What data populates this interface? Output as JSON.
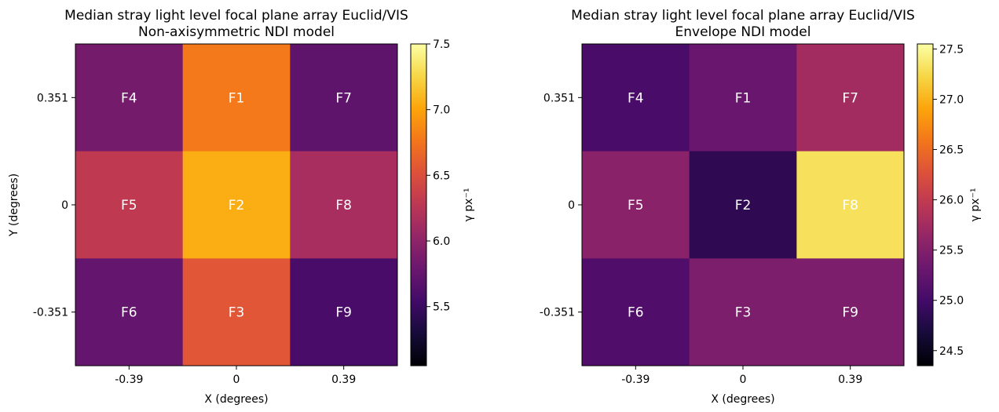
{
  "chart_data": [
    {
      "type": "heatmap",
      "title": "Median stray light level focal plane array Euclid/VIS",
      "subtitle": "Non-axisymmetric NDI model",
      "xlabel": "X (degrees)",
      "ylabel": "Y (degrees)",
      "x_ticks": [
        "-0.39",
        "0",
        "0.39"
      ],
      "y_ticks": [
        "0.351",
        "0",
        "-0.351"
      ],
      "colormap": "inferno",
      "colorbar": {
        "label": "γ px⁻¹",
        "range": [
          5.05,
          7.5
        ],
        "ticks": [
          "5.5",
          "6.0",
          "6.5",
          "7.0",
          "7.5"
        ],
        "tick_values": [
          5.5,
          6.0,
          6.5,
          7.0,
          7.5
        ]
      },
      "cells": [
        [
          {
            "label": "F4",
            "value": 5.85
          },
          {
            "label": "F1",
            "value": 6.78
          },
          {
            "label": "F7",
            "value": 5.72
          }
        ],
        [
          {
            "label": "F5",
            "value": 6.3
          },
          {
            "label": "F2",
            "value": 7.05
          },
          {
            "label": "F8",
            "value": 6.15
          }
        ],
        [
          {
            "label": "F6",
            "value": 5.75
          },
          {
            "label": "F3",
            "value": 6.55
          },
          {
            "label": "F9",
            "value": 5.58
          }
        ]
      ]
    },
    {
      "type": "heatmap",
      "title": "Median stray light level focal plane array Euclid/VIS",
      "subtitle": "Envelope NDI model",
      "xlabel": "X (degrees)",
      "ylabel": "",
      "x_ticks": [
        "-0.39",
        "0",
        "0.39"
      ],
      "y_ticks": [
        "0.351",
        "0",
        "-0.351"
      ],
      "colormap": "inferno",
      "colorbar": {
        "label": "γ px⁻¹",
        "range": [
          24.35,
          27.55
        ],
        "ticks": [
          "24.5",
          "25.0",
          "25.5",
          "26.0",
          "26.5",
          "27.0",
          "27.5"
        ],
        "tick_values": [
          24.5,
          25.0,
          25.5,
          26.0,
          26.5,
          27.0,
          27.5
        ]
      },
      "cells": [
        [
          {
            "label": "F4",
            "value": 25.05
          },
          {
            "label": "F1",
            "value": 25.3
          },
          {
            "label": "F7",
            "value": 25.75
          }
        ],
        [
          {
            "label": "F5",
            "value": 25.55
          },
          {
            "label": "F2",
            "value": 24.85
          },
          {
            "label": "F8",
            "value": 27.3
          }
        ],
        [
          {
            "label": "F6",
            "value": 25.1
          },
          {
            "label": "F3",
            "value": 25.45
          },
          {
            "label": "F9",
            "value": 25.45
          }
        ]
      ]
    }
  ]
}
